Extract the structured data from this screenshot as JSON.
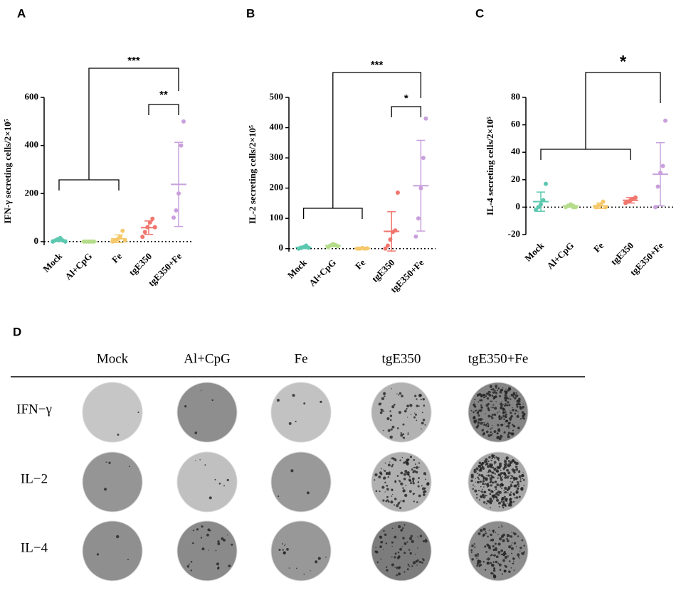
{
  "chart_data": [
    {
      "type": "dotplot",
      "panel": "A",
      "ylabel": "IFN-γ secreting cells/2×10⁵",
      "categories": [
        "Mock",
        "Al+CpG",
        "Fe",
        "tgE350",
        "tgE350+Fe"
      ],
      "colors": [
        "#5cc8b0",
        "#b5dc8a",
        "#f5c86a",
        "#f0766e",
        "#c9a0dc"
      ],
      "points": [
        [
          0,
          5,
          10,
          15,
          5,
          0
        ],
        [
          0,
          0,
          0,
          0,
          0
        ],
        [
          0,
          5,
          10,
          20,
          45,
          5
        ],
        [
          20,
          40,
          60,
          80,
          95,
          60
        ],
        [
          100,
          130,
          200,
          400,
          500
        ]
      ],
      "means": [
        6,
        0,
        12,
        58,
        238
      ],
      "sd": [
        5,
        0,
        16,
        28,
        175
      ],
      "ylim": [
        -15,
        600
      ],
      "yticks": [
        0,
        200,
        400,
        600
      ],
      "annotations": [
        {
          "label": "***"
        },
        {
          "label": "**"
        }
      ]
    },
    {
      "type": "dotplot",
      "panel": "B",
      "ylabel": "IL-2 secreting cells/2×10⁵",
      "categories": [
        "Mock",
        "Al+CpG",
        "Fe",
        "tgE350",
        "tgE350+Fe"
      ],
      "colors": [
        "#5cc8b0",
        "#b5dc8a",
        "#f5c86a",
        "#f0766e",
        "#c9a0dc"
      ],
      "points": [
        [
          0,
          2,
          5,
          10,
          3
        ],
        [
          5,
          10,
          15,
          12,
          8
        ],
        [
          0,
          0,
          2,
          0,
          1
        ],
        [
          0,
          10,
          30,
          55,
          60,
          185
        ],
        [
          40,
          100,
          200,
          300,
          430
        ]
      ],
      "means": [
        4,
        10,
        1,
        57,
        208
      ],
      "sd": [
        4,
        4,
        1,
        65,
        150
      ],
      "ylim": [
        -10,
        500
      ],
      "yticks": [
        0,
        100,
        200,
        300,
        400,
        500
      ],
      "annotations": [
        {
          "label": "***"
        },
        {
          "label": "*"
        }
      ]
    },
    {
      "type": "dotplot",
      "panel": "C",
      "ylabel": "IL-4 secreting cells/2×10⁵",
      "categories": [
        "Mock",
        "Al+CpG",
        "Fe",
        "tgE350",
        "tgE350+Fe"
      ],
      "colors": [
        "#5cc8b0",
        "#b5dc8a",
        "#f5c86a",
        "#f0766e",
        "#c9a0dc"
      ],
      "points": [
        [
          -2,
          0,
          2,
          5,
          17
        ],
        [
          0,
          1,
          2,
          0,
          0
        ],
        [
          0,
          1,
          2,
          4,
          0
        ],
        [
          3,
          4,
          5,
          6,
          7
        ],
        [
          0,
          15,
          25,
          30,
          63
        ]
      ],
      "means": [
        4,
        1,
        1,
        5,
        24
      ],
      "sd": [
        7,
        1,
        2,
        2,
        23
      ],
      "ylim": [
        -20,
        80
      ],
      "yticks": [
        -20,
        0,
        20,
        40,
        60,
        80
      ],
      "annotations": [
        {
          "label": "*"
        }
      ]
    }
  ],
  "panel_d": {
    "letter": "D",
    "columns": [
      "Mock",
      "Al+CpG",
      "Fe",
      "tgE350",
      "tgE350+Fe"
    ],
    "rows": [
      "IFN−γ",
      "IL−2",
      "IL−4"
    ]
  }
}
